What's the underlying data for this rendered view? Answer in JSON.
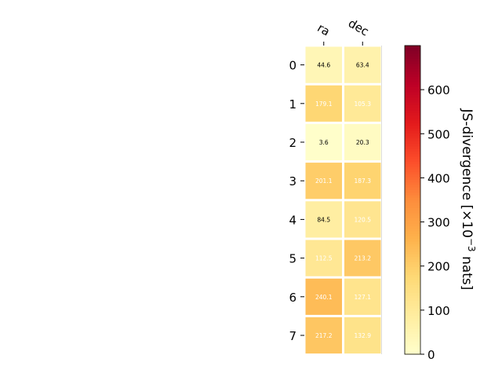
{
  "chart_data": {
    "type": "heatmap",
    "columns": [
      "ra",
      "dec"
    ],
    "rows": [
      "0",
      "1",
      "2",
      "3",
      "4",
      "5",
      "6",
      "7"
    ],
    "values": [
      [
        44.6,
        63.4
      ],
      [
        179.1,
        105.3
      ],
      [
        3.6,
        20.3
      ],
      [
        201.1,
        187.3
      ],
      [
        84.5,
        120.5
      ],
      [
        112.5,
        213.2
      ],
      [
        240.1,
        127.1
      ],
      [
        217.2,
        132.9
      ]
    ],
    "value_labels": [
      [
        "44.6",
        "63.4"
      ],
      [
        "179.1",
        "105.3"
      ],
      [
        "3.6",
        "20.3"
      ],
      [
        "201.1",
        "187.3"
      ],
      [
        "84.5",
        "120.5"
      ],
      [
        "112.5",
        "213.2"
      ],
      [
        "240.1",
        "127.1"
      ],
      [
        "217.2",
        "132.9"
      ]
    ],
    "colormap": "YlOrRd",
    "colorbar": {
      "label": "JS-divergence [×10",
      "label_exponent": "−3",
      "label_suffix": " nats]",
      "range": [
        0,
        700
      ],
      "ticks": [
        0,
        100,
        200,
        300,
        400,
        500,
        600
      ],
      "tick_labels": [
        "0",
        "100",
        "200",
        "300",
        "400",
        "500",
        "600"
      ]
    }
  }
}
